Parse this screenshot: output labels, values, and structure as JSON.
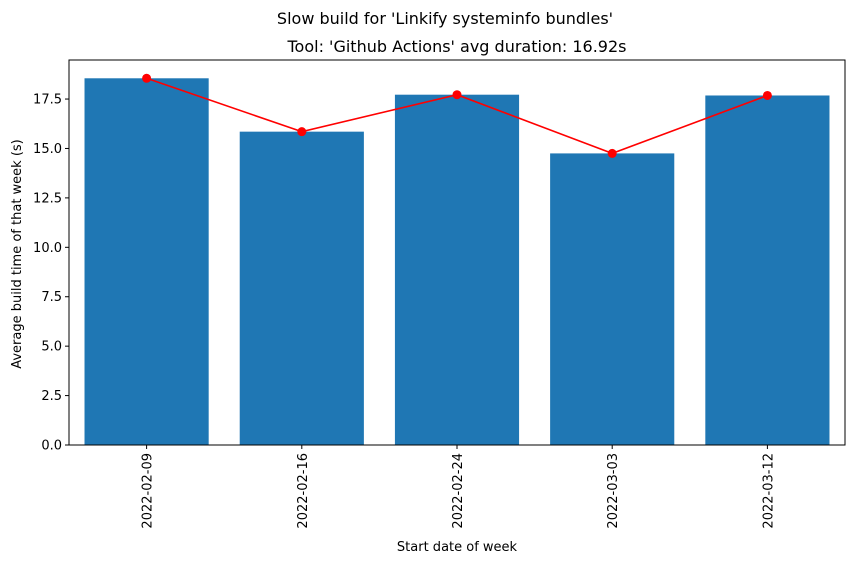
{
  "chart_data": {
    "type": "bar",
    "suptitle": "Slow build for 'Linkify systeminfo bundles'",
    "title": "Tool: 'Github Actions' avg duration: 16.92s",
    "xlabel": "Start date of week",
    "ylabel": "Average build time of that week (s)",
    "categories": [
      "2022-02-09",
      "2022-02-16",
      "2022-02-24",
      "2022-03-03",
      "2022-03-12"
    ],
    "series": [
      {
        "type": "bar",
        "values": [
          18.55,
          15.85,
          17.72,
          14.75,
          17.68
        ],
        "color": "#1f77b4"
      },
      {
        "type": "line",
        "marker": "circle",
        "values": [
          18.55,
          15.85,
          17.72,
          14.75,
          17.68
        ],
        "color": "#ff0000"
      }
    ],
    "ylim": [
      0,
      19.475
    ],
    "yticks": [
      "0.0",
      "2.5",
      "5.0",
      "7.5",
      "10.0",
      "12.5",
      "15.0",
      "17.5"
    ],
    "ytick_values": [
      0,
      2.5,
      5,
      7.5,
      10,
      12.5,
      15,
      17.5
    ],
    "grid": false,
    "legend": "none"
  }
}
